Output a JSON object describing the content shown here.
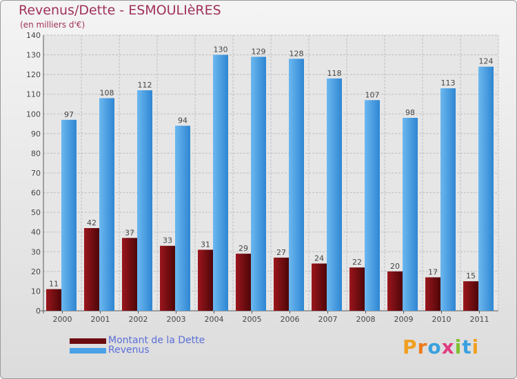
{
  "header": {
    "title": "Revenus/Dette - ESMOULIèRES",
    "subtitle": "(en milliers d'€)"
  },
  "legend": {
    "debt_label": "Montant de la Dette",
    "revenue_label": "Revenus"
  },
  "logo": {
    "text": "Proxiti"
  },
  "colors": {
    "debt": "#7a0f14",
    "revenue": "#4ba2e6",
    "axis_text": "#444444",
    "title": "#a0305a"
  },
  "chart_data": {
    "type": "bar",
    "title": "Revenus/Dette - ESMOULIèRES",
    "ylabel": "(en milliers d'€)",
    "xlabel": "",
    "categories": [
      "2000",
      "2001",
      "2002",
      "2003",
      "2004",
      "2005",
      "2006",
      "2007",
      "2008",
      "2009",
      "2010",
      "2011"
    ],
    "series": [
      {
        "name": "Montant de la Dette",
        "values": [
          11,
          42,
          37,
          33,
          31,
          29,
          27,
          24,
          22,
          20,
          17,
          15
        ]
      },
      {
        "name": "Revenus",
        "values": [
          97,
          108,
          112,
          94,
          130,
          129,
          128,
          118,
          107,
          98,
          113,
          124
        ]
      }
    ],
    "ylim": [
      0,
      140
    ],
    "yticks": [
      0,
      10,
      20,
      30,
      40,
      50,
      60,
      70,
      80,
      90,
      100,
      110,
      120,
      130,
      140
    ],
    "grid": true,
    "legend_position": "bottom-left"
  }
}
